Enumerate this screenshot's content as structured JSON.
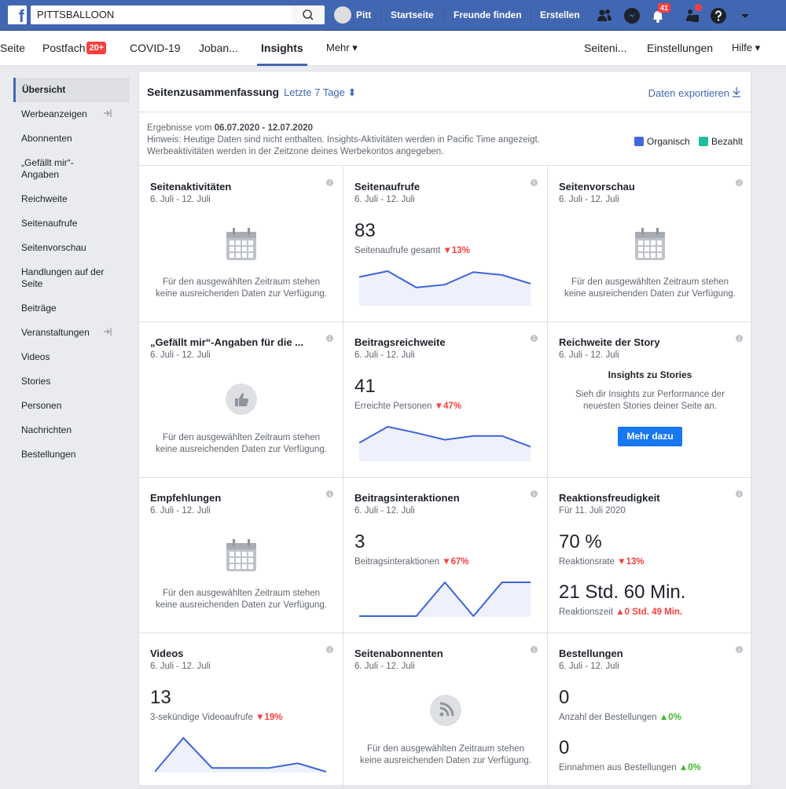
{
  "topbar": {
    "search_value": "PITTSBALLOON",
    "user": "Pitt",
    "links": [
      "Startseite",
      "Freunde finden",
      "Erstellen"
    ],
    "notifications_badge": "41"
  },
  "subnav": {
    "tabs": [
      "Seite",
      "Postfach",
      "COVID-19",
      "Joban...",
      "Insights",
      "Mehr ▾"
    ],
    "postfach_badge": "20+",
    "right": [
      "Seiteni...",
      "Einstellungen",
      "Hilfe ▾"
    ],
    "active": "Insights"
  },
  "sidebar": {
    "items": [
      "Übersicht",
      "Werbeanzeigen",
      "Abonnenten",
      "„Gefällt mir“-Angaben",
      "Reichweite",
      "Seitenaufrufe",
      "Seitenvorschau",
      "Handlungen auf der Seite",
      "Beiträge",
      "Veranstaltungen",
      "Videos",
      "Stories",
      "Personen",
      "Nachrichten",
      "Bestellungen"
    ]
  },
  "header": {
    "title": "Seitenzusammenfassung",
    "range": "Letzte 7 Tage ⬍",
    "export": "Daten exportieren"
  },
  "info": {
    "results_prefix": "Ergebnisse vom",
    "results_range": "06.07.2020 - 12.07.2020",
    "note1": "Hinweis: Heutige Daten sind nicht enthalten. Insights-Aktivitäten werden in Pacific Time angezeigt.",
    "note2": "Werbeaktivitäten werden in der Zeitzone deines Werbekontos angegeben."
  },
  "legend": [
    {
      "label": "Organisch",
      "color": "#4267e0"
    },
    {
      "label": "Bezahlt",
      "color": "#1fbc9c"
    }
  ],
  "colors": {
    "line": "#3b64d8",
    "fill": "#eef0fb",
    "accent": "#4267b2"
  },
  "cards": [
    {
      "title": "Seitenaktivitäten",
      "date": "6. Juli - 12. Juli",
      "empty": "Für den ausgewählten Zeitraum stehen keine ausreichenden Daten zur Verfügung.",
      "icon": "calendar-icon"
    },
    {
      "title": "Seitenaufrufe",
      "date": "6. Juli - 12. Juli",
      "value": "83",
      "label": "Seitenaufrufe gesamt",
      "change": "▼13%",
      "change_dir": "down",
      "sparkline": [
        29,
        35,
        18,
        21,
        34,
        31,
        22
      ]
    },
    {
      "title": "Seitenvorschau",
      "date": "6. Juli - 12. Juli",
      "empty": "Für den ausgewählten Zeitraum stehen keine ausreichenden Daten zur Verfügung.",
      "icon": "calendar-icon"
    },
    {
      "title": "„Gefällt mir“-Angaben für die ...",
      "date": "6. Juli - 12. Juli",
      "empty": "Für den ausgewählten Zeitraum stehen keine ausreichenden Daten zur Verfügung.",
      "icon": "thumbs-up-icon"
    },
    {
      "title": "Beitragsreichweite",
      "date": "6. Juli - 12. Juli",
      "value": "41",
      "label": "Erreichte Personen",
      "change": "▼47%",
      "change_dir": "down",
      "sparkline": [
        23,
        44,
        36,
        27,
        32,
        32,
        18
      ]
    },
    {
      "title": "Reichweite der Story",
      "date": "6. Juli - 12. Juli",
      "heading": "Insights zu Stories",
      "text": "Sieh dir Insights zur Performance der neuesten Stories deiner Seite an.",
      "button": "Mehr dazu"
    },
    {
      "title": "Empfehlungen",
      "date": "6. Juli - 12. Juli",
      "empty": "Für den ausgewählten Zeitraum stehen keine ausreichenden Daten zur Verfügung.",
      "icon": "calendar-icon"
    },
    {
      "title": "Beitragsinteraktionen",
      "date": "6. Juli - 12. Juli",
      "value": "3",
      "label": "Beitragsinteraktionen",
      "change": "▼67%",
      "change_dir": "down",
      "sparkline": [
        0,
        0,
        0,
        1,
        0,
        1,
        1
      ]
    },
    {
      "title": "Reaktionsfreudigkeit",
      "date": "Für 11. Juli 2020",
      "value": "70 %",
      "label": "Reaktionsrate",
      "change": "▼13%",
      "change_dir": "down",
      "value2": "21 Std. 60 Min.",
      "label2": "Reaktionszeit",
      "change2": "▲0 Std. 49 Min.",
      "change2_dir": "up"
    },
    {
      "title": "Videos",
      "date": "6. Juli - 12. Juli",
      "value": "13",
      "label": "3-sekündige Videoaufrufe",
      "change": "▼19%",
      "change_dir": "down",
      "sparkline": [
        0,
        36,
        4,
        4,
        4,
        9,
        0
      ]
    },
    {
      "title": "Seitenabonnenten",
      "date": "6. Juli - 12. Juli",
      "empty": "Für den ausgewählten Zeitraum stehen keine ausreichenden Daten zur Verfügung.",
      "icon": "rss-icon"
    },
    {
      "title": "Bestellungen",
      "date": "6. Juli - 12. Juli",
      "value": "0",
      "label": "Anzahl der Bestellungen",
      "change": "▲0%",
      "change_dir": "green",
      "value2": "0",
      "label2": "Einnahmen aus Bestellungen",
      "change2": "▲0%",
      "change2_dir": "green"
    }
  ]
}
